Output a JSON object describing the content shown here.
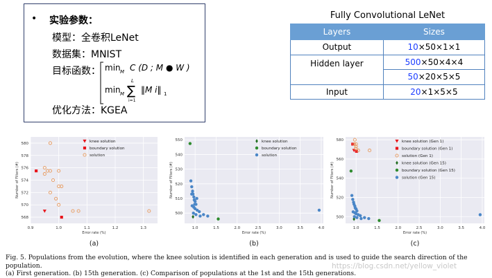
{
  "params": {
    "bullet": "•",
    "heading": "实验参数：",
    "model": "模型：全卷积LeNet",
    "dataset": "数据集：MNIST",
    "objective_label": "目标函数：",
    "formula1_min": "min",
    "formula1_sub": "M",
    "formula1_body": "C (D ; M ● W )",
    "formula2_min": "min",
    "formula2_sub": "M",
    "formula2_sum_top": "L",
    "formula2_sum": "∑",
    "formula2_sum_bottom": "i=1",
    "formula2_body": "‖M i‖",
    "formula2_norm": "1",
    "optimizer": "优化方法：KGEA"
  },
  "lenet_table": {
    "title": "Fully Convolutional LeNet",
    "headers": [
      "Layers",
      "Sizes"
    ],
    "rows": [
      {
        "layer": "Output",
        "num": "10",
        "rest": "×50×1×1"
      },
      {
        "layer": "Hidden layer",
        "num": "500",
        "rest": "×50×4×4"
      },
      {
        "layer": "",
        "num": "50",
        "rest": "×20×5×5"
      },
      {
        "layer": "Input",
        "num": "20",
        "rest": "×1×5×5"
      }
    ]
  },
  "chart_data": [
    {
      "type": "scatter",
      "panel_label": "(a)",
      "xlabel": "Error rate (%)",
      "ylabel": "Number of Filters (#)",
      "xlim": [
        0.9,
        1.35
      ],
      "ylim": [
        567,
        581
      ],
      "xticks": [
        "0.9",
        "1.0",
        "1.1",
        "1.2",
        "1.3"
      ],
      "yticks": [
        "568",
        "570",
        "572",
        "574",
        "576",
        "578",
        "580"
      ],
      "series": [
        {
          "name": "knee solution",
          "marker": "triangle-down",
          "color": "#e8141a",
          "points": [
            [
              0.95,
              569
            ]
          ]
        },
        {
          "name": "boundary solution",
          "marker": "square",
          "color": "#e8141a",
          "points": [
            [
              0.92,
              575.5
            ],
            [
              1.01,
              568
            ]
          ]
        },
        {
          "name": "solution",
          "marker": "circle-open",
          "color": "#e8995a",
          "points": [
            [
              0.97,
              580
            ],
            [
              0.95,
              576
            ],
            [
              0.96,
              575.5
            ],
            [
              0.97,
              575.5
            ],
            [
              1.0,
              575.5
            ],
            [
              0.98,
              574
            ],
            [
              1.0,
              573
            ],
            [
              1.01,
              573
            ],
            [
              0.97,
              572
            ],
            [
              1.0,
              570
            ],
            [
              0.99,
              571
            ],
            [
              1.07,
              569
            ],
            [
              1.05,
              569
            ],
            [
              1.32,
              569
            ],
            [
              0.95,
              575
            ]
          ]
        }
      ]
    },
    {
      "type": "scatter",
      "panel_label": "(b)",
      "xlabel": "Error rate (%)",
      "ylabel": "Number of Filters (#)",
      "xlim": [
        0.75,
        4.05
      ],
      "ylim": [
        493,
        552
      ],
      "xticks": [
        "1.0",
        "1.5",
        "2.0",
        "2.5",
        "3.0",
        "3.5",
        "4.0"
      ],
      "yticks": [
        "500",
        "510",
        "520",
        "530",
        "540",
        "550"
      ],
      "series": [
        {
          "name": "knee solution",
          "marker": "diamond",
          "color": "#1e6b1e",
          "points": [
            [
              0.95,
              497.5
            ]
          ]
        },
        {
          "name": "boundary solution",
          "marker": "circle",
          "color": "#2e8b2e",
          "points": [
            [
              0.88,
              547.5
            ],
            [
              1.55,
              496
            ]
          ]
        },
        {
          "name": "solution",
          "marker": "circle",
          "color": "#4a86c7",
          "points": [
            [
              0.9,
              522
            ],
            [
              0.92,
              518
            ],
            [
              0.94,
              515
            ],
            [
              0.95,
              513
            ],
            [
              0.97,
              511
            ],
            [
              0.98,
              509
            ],
            [
              1.0,
              508
            ],
            [
              1.02,
              506
            ],
            [
              0.93,
              505
            ],
            [
              0.97,
              504
            ],
            [
              1.0,
              503
            ],
            [
              1.05,
              502
            ],
            [
              1.1,
              501
            ],
            [
              0.96,
              500
            ],
            [
              1.02,
              499
            ],
            [
              1.12,
              498
            ],
            [
              1.2,
              499
            ],
            [
              1.3,
              498
            ],
            [
              0.99,
              506
            ],
            [
              1.04,
              510
            ],
            [
              0.92,
              513
            ],
            [
              3.95,
              502
            ]
          ]
        }
      ]
    },
    {
      "type": "scatter",
      "panel_label": "(c)",
      "xlabel": "Error rate (%)",
      "ylabel": "Number of Filters (#)",
      "xlim": [
        0.75,
        4.05
      ],
      "ylim": [
        493,
        583
      ],
      "xticks": [
        "1.0",
        "1.5",
        "2.0",
        "2.5",
        "3.0",
        "3.5",
        "4.0"
      ],
      "yticks": [
        "500",
        "520",
        "540",
        "560",
        "580"
      ],
      "series": [
        {
          "name": "knee solution (Gen 1)",
          "marker": "triangle-down",
          "color": "#e8141a",
          "points": [
            [
              0.95,
              569
            ]
          ]
        },
        {
          "name": "boundary solution (Gen 1)",
          "marker": "square",
          "color": "#e8141a",
          "points": [
            [
              0.92,
              575.5
            ],
            [
              1.01,
              568
            ]
          ]
        },
        {
          "name": "solution (Gen 1)",
          "marker": "circle-open",
          "color": "#e8995a",
          "points": [
            [
              0.97,
              580
            ],
            [
              0.96,
              575.5
            ],
            [
              1.0,
              575.5
            ],
            [
              1.0,
              573
            ],
            [
              0.99,
              571
            ],
            [
              1.05,
              569
            ],
            [
              1.32,
              569
            ]
          ]
        },
        {
          "name": "knee solution (Gen 15)",
          "marker": "diamond",
          "color": "#1e6b1e",
          "points": [
            [
              0.95,
              497.5
            ]
          ]
        },
        {
          "name": "boundary solution (Gen 15)",
          "marker": "circle",
          "color": "#2e8b2e",
          "points": [
            [
              0.88,
              547.5
            ],
            [
              1.55,
              496
            ]
          ]
        },
        {
          "name": "solution (Gen 15)",
          "marker": "circle",
          "color": "#4a86c7",
          "points": [
            [
              0.9,
              522
            ],
            [
              0.92,
              518
            ],
            [
              0.94,
              515
            ],
            [
              0.95,
              513
            ],
            [
              0.97,
              511
            ],
            [
              0.98,
              509
            ],
            [
              1.0,
              508
            ],
            [
              1.02,
              506
            ],
            [
              0.93,
              505
            ],
            [
              0.97,
              504
            ],
            [
              1.0,
              503
            ],
            [
              1.05,
              502
            ],
            [
              1.1,
              501
            ],
            [
              0.96,
              500
            ],
            [
              1.02,
              499
            ],
            [
              1.12,
              498
            ],
            [
              1.2,
              499
            ],
            [
              1.3,
              498
            ],
            [
              3.95,
              502
            ]
          ]
        }
      ]
    }
  ],
  "caption": {
    "line1": "Fig. 5.    Populations from the evolution, where the knee solution is identified in each generation and is used to guide the search direction of the population.",
    "line2": "(a) First generation. (b) 15th generation. (c) Comparison of populations at the 1st and the 15th generations."
  },
  "watermark": "https://blog.csdn.net/yellow_violet"
}
